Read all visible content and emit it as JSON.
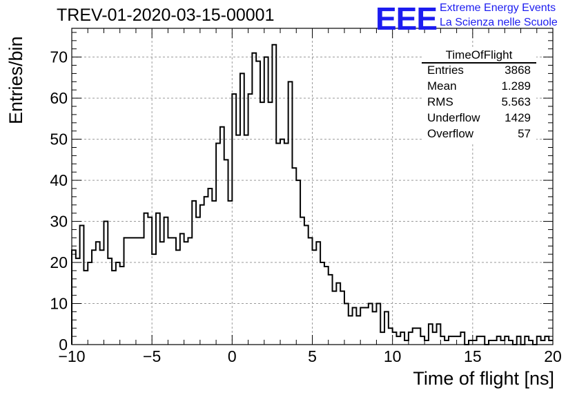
{
  "title": "TREV-01-2020-03-15-00001",
  "logo": {
    "mark": "EEE",
    "line1": "Extreme Energy Events",
    "line2": "La Scienza nelle Scuole",
    "color": "#1c1cf0"
  },
  "stats_box": {
    "name": "TimeOfFlight",
    "rows": [
      {
        "label": "Entries",
        "value": "3868"
      },
      {
        "label": "Mean",
        "value": "1.289"
      },
      {
        "label": "RMS",
        "value": "5.563"
      },
      {
        "label": "Underflow",
        "value": "1429"
      },
      {
        "label": "Overflow",
        "value": "57"
      }
    ]
  },
  "chart_data": {
    "type": "bar",
    "histogram": true,
    "xlabel": "Time of flight [ns]",
    "ylabel": "Entries/bin",
    "xlim": [
      -10,
      20
    ],
    "ylim": [
      0,
      77
    ],
    "xticks": [
      -10,
      -5,
      0,
      5,
      10,
      15,
      20
    ],
    "yticks": [
      0,
      10,
      20,
      30,
      40,
      50,
      60,
      70
    ],
    "grid": true,
    "bin_width": 0.25,
    "bin_start": -10,
    "values": [
      23,
      21,
      29,
      18,
      20,
      23,
      25,
      23,
      30,
      21,
      18,
      20,
      19,
      26,
      26,
      26,
      26,
      26,
      32,
      31,
      22,
      32,
      25,
      31,
      26,
      26,
      23,
      27,
      25,
      26,
      35,
      31,
      34,
      36,
      38,
      35,
      49,
      53,
      45,
      35,
      61,
      51,
      66,
      51,
      61,
      71,
      69,
      59,
      70,
      59,
      73,
      49,
      50,
      49,
      64,
      43,
      40,
      31,
      29,
      26,
      23,
      25,
      20,
      19,
      17,
      13,
      15,
      13,
      10,
      7,
      9,
      7,
      9,
      9,
      10,
      8,
      10,
      3,
      8,
      4,
      3,
      2,
      3,
      1,
      3,
      4,
      4,
      2,
      1,
      5,
      3,
      5,
      2,
      1,
      2,
      2,
      2,
      3,
      0,
      1,
      1,
      2,
      2,
      0,
      1,
      1,
      2,
      1,
      2,
      1,
      0,
      2,
      0,
      2,
      1,
      0,
      2,
      1,
      2,
      1
    ]
  }
}
